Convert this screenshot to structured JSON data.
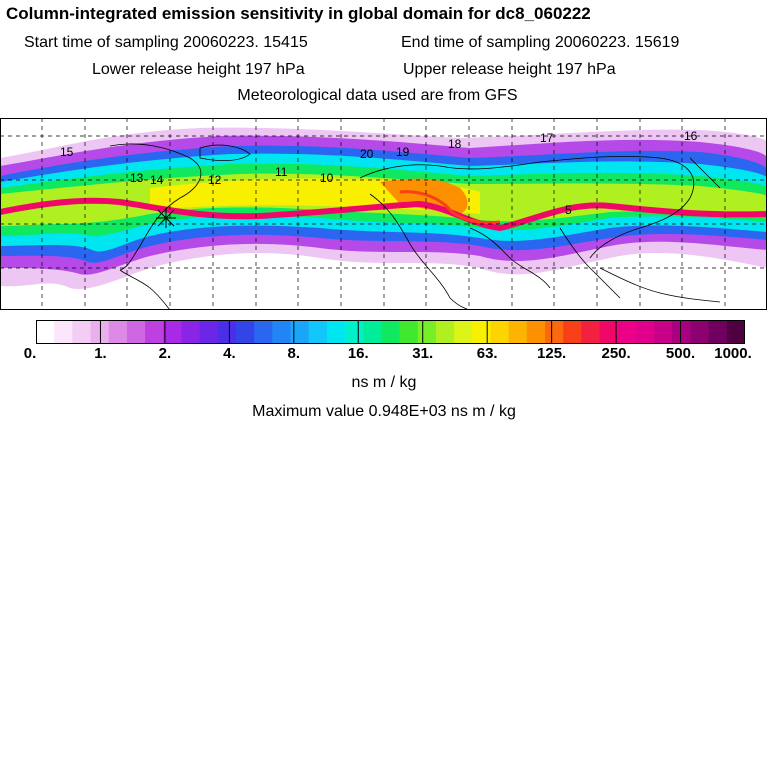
{
  "header": {
    "title": "Column-integrated emission sensitivity in global domain for dc8_060222",
    "start_label": "Start time of sampling 20060223. 15415",
    "end_label": "End time of sampling 20060223. 15619",
    "lower_label": "Lower release height  197 hPa",
    "upper_label": "Upper release height  197 hPa",
    "met_label": "Meteorological data used are from GFS"
  },
  "map": {
    "day_labels": [
      "15",
      "13",
      "14",
      "12",
      "11",
      "10",
      "20",
      "19",
      "18",
      "17",
      "16",
      "5"
    ]
  },
  "colorbar": {
    "tick_labels": [
      "0.",
      "1.",
      "2.",
      "4.",
      "8.",
      "16.",
      "31.",
      "63.",
      "125.",
      "250.",
      "500.",
      "1000."
    ],
    "colors": [
      "#ffffff",
      "#fbe6fb",
      "#f3cdf3",
      "#eab0ee",
      "#dd8ae6",
      "#cf66e2",
      "#bf40e0",
      "#a82ae6",
      "#8c24e8",
      "#6c26e8",
      "#4c2ee8",
      "#3246e8",
      "#2a66f0",
      "#2285f5",
      "#1aa5f8",
      "#12c6fa",
      "#00e6f0",
      "#00f0c8",
      "#00ec98",
      "#10e860",
      "#40e830",
      "#78ee28",
      "#b0f020",
      "#dcf418",
      "#f8f000",
      "#fcd400",
      "#fcb400",
      "#fc9000",
      "#fa6810",
      "#f84018",
      "#f42040",
      "#f00868",
      "#ec0088",
      "#e0008c",
      "#c80088",
      "#a80080",
      "#8c0070",
      "#700060",
      "#500040"
    ],
    "units": "ns m / kg",
    "maximum_label": "Maximum value  0.948E+03 ns m / kg"
  }
}
